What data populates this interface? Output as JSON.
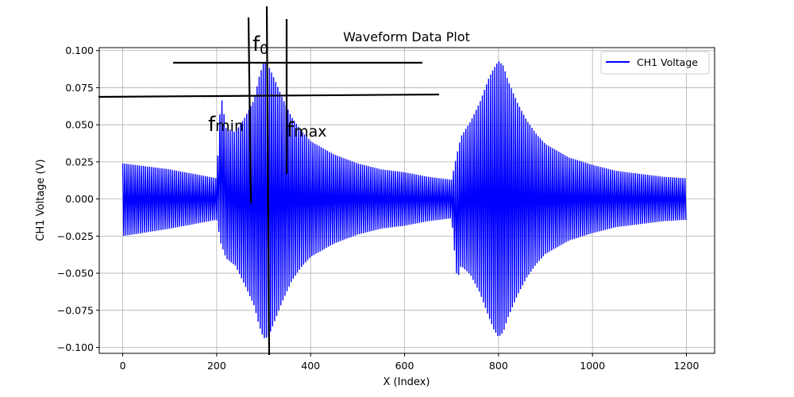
{
  "chart_data": {
    "type": "line",
    "title": "Waveform Data Plot",
    "xlabel": "X (Index)",
    "ylabel": "CH1 Voltage (V)",
    "xlim": [
      -50,
      1260
    ],
    "ylim": [
      -0.104,
      0.102
    ],
    "xticks": [
      0,
      200,
      400,
      600,
      800,
      1000,
      1200
    ],
    "yticks": [
      -0.1,
      -0.075,
      -0.05,
      -0.025,
      0.0,
      0.025,
      0.05,
      0.075,
      0.1
    ],
    "ytick_labels": [
      "−0.100",
      "−0.075",
      "−0.050",
      "−0.025",
      "0.000",
      "0.025",
      "0.050",
      "0.075",
      "0.100"
    ],
    "xtick_labels": [
      "0",
      "200",
      "400",
      "600",
      "800",
      "1000",
      "1200"
    ],
    "grid": true,
    "legend_position": "upper-right",
    "color": "#0000ff",
    "series": [
      {
        "name": "CH1 Voltage",
        "envelope": {
          "x": [
            0,
            100,
            200,
            209,
            220,
            240,
            260,
            280,
            290,
            300,
            310,
            320,
            340,
            360,
            380,
            400,
            450,
            500,
            550,
            600,
            650,
            700,
            712,
            720,
            740,
            760,
            780,
            790,
            800,
            810,
            820,
            840,
            860,
            880,
            900,
            950,
            1000,
            1050,
            1100,
            1150,
            1200
          ],
          "upper": [
            0.024,
            0.02,
            0.014,
            0.071,
            0.048,
            0.045,
            0.055,
            0.067,
            0.082,
            0.092,
            0.09,
            0.083,
            0.068,
            0.055,
            0.046,
            0.039,
            0.03,
            0.024,
            0.02,
            0.018,
            0.015,
            0.013,
            0.031,
            0.042,
            0.052,
            0.065,
            0.082,
            0.088,
            0.093,
            0.09,
            0.08,
            0.065,
            0.053,
            0.044,
            0.037,
            0.028,
            0.023,
            0.019,
            0.017,
            0.015,
            0.014
          ],
          "lower": [
            -0.025,
            -0.02,
            -0.014,
            -0.03,
            -0.04,
            -0.045,
            -0.058,
            -0.072,
            -0.085,
            -0.094,
            -0.093,
            -0.085,
            -0.069,
            -0.055,
            -0.046,
            -0.039,
            -0.03,
            -0.024,
            -0.02,
            -0.018,
            -0.015,
            -0.013,
            -0.055,
            -0.045,
            -0.051,
            -0.063,
            -0.08,
            -0.088,
            -0.093,
            -0.09,
            -0.08,
            -0.065,
            -0.053,
            -0.044,
            -0.037,
            -0.028,
            -0.023,
            -0.019,
            -0.017,
            -0.015,
            -0.014
          ]
        }
      }
    ],
    "annotations": {
      "f0_label": "f",
      "f0_sub": "0",
      "fmin_label": "f",
      "fmin_sub": "min",
      "fmax_label": "f",
      "fmax_sub": "max"
    }
  }
}
